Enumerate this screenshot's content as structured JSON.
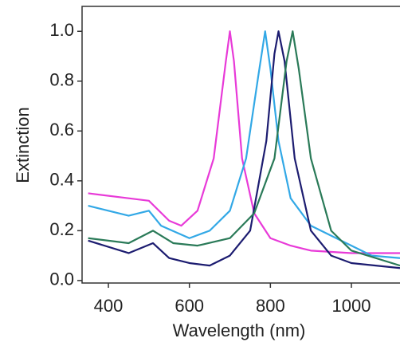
{
  "chart_data": {
    "type": "line",
    "xlabel": "Wavelength (nm)",
    "ylabel": "Extinction",
    "xlim": [
      335,
      1120
    ],
    "ylim": [
      -0.01,
      1.1
    ],
    "xticks": [
      400,
      600,
      800,
      1000
    ],
    "yticks": [
      {
        "value": 0,
        "label": "0.0"
      },
      0.2,
      0.4,
      0.6,
      0.8,
      {
        "value": 1,
        "label": "1.0"
      }
    ],
    "series": [
      {
        "color": "#e83ad8",
        "x": [
          350,
          450,
          500,
          550,
          580,
          620,
          660,
          690,
          700,
          710,
          730,
          760,
          800,
          850,
          900,
          1000,
          1120
        ],
        "values": [
          0.35,
          0.33,
          0.32,
          0.24,
          0.22,
          0.28,
          0.49,
          0.88,
          1.0,
          0.88,
          0.49,
          0.27,
          0.17,
          0.14,
          0.12,
          0.11,
          0.11
        ]
      },
      {
        "color": "#32a8e6",
        "x": [
          350,
          450,
          500,
          530,
          600,
          650,
          700,
          740,
          770,
          787,
          800,
          820,
          850,
          900,
          950,
          1000,
          1050,
          1120
        ],
        "values": [
          0.3,
          0.26,
          0.28,
          0.22,
          0.17,
          0.2,
          0.28,
          0.49,
          0.82,
          1.0,
          0.85,
          0.56,
          0.33,
          0.22,
          0.18,
          0.14,
          0.1,
          0.09
        ]
      },
      {
        "color": "#1c1c70",
        "x": [
          350,
          450,
          510,
          550,
          600,
          650,
          700,
          750,
          790,
          810,
          820,
          835,
          860,
          900,
          950,
          1000,
          1120
        ],
        "values": [
          0.16,
          0.11,
          0.15,
          0.09,
          0.07,
          0.06,
          0.1,
          0.2,
          0.56,
          0.91,
          1.0,
          0.88,
          0.49,
          0.2,
          0.1,
          0.07,
          0.05
        ]
      },
      {
        "color": "#2a7a58",
        "x": [
          350,
          450,
          510,
          560,
          620,
          700,
          760,
          810,
          840,
          855,
          870,
          900,
          950,
          1000,
          1120
        ],
        "values": [
          0.17,
          0.15,
          0.2,
          0.15,
          0.14,
          0.17,
          0.27,
          0.49,
          0.88,
          1.0,
          0.85,
          0.49,
          0.2,
          0.12,
          0.06
        ]
      }
    ]
  }
}
